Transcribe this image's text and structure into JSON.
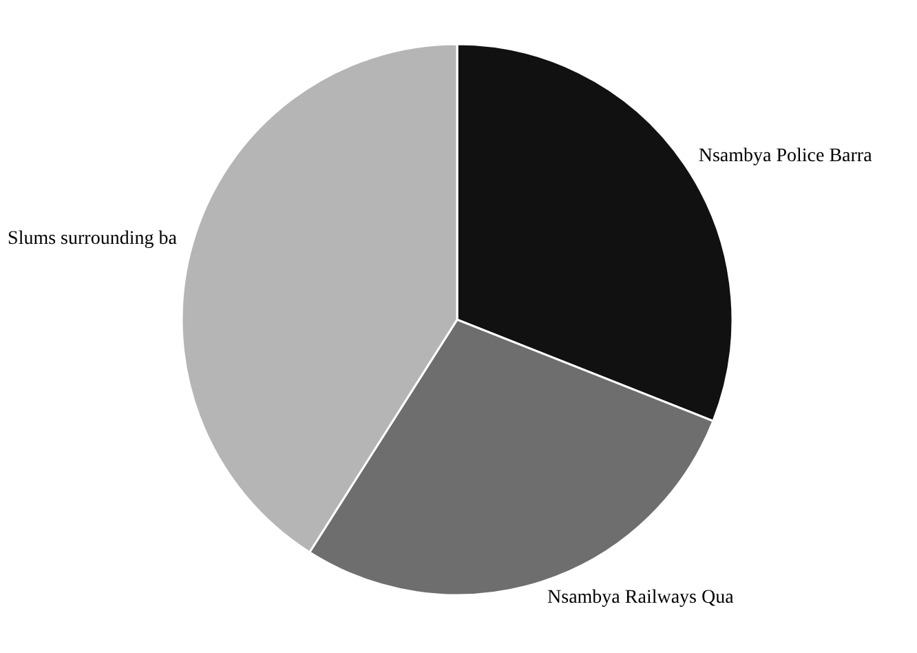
{
  "chart_data": {
    "type": "pie",
    "categories": [
      "Nsambya Police Barra",
      "Nsambya Railways Qua",
      "Slums surrounding ba"
    ],
    "values": [
      31,
      28,
      41
    ],
    "colors": [
      "#111111",
      "#6e6e6e",
      "#b5b5b5"
    ],
    "legend": false
  }
}
